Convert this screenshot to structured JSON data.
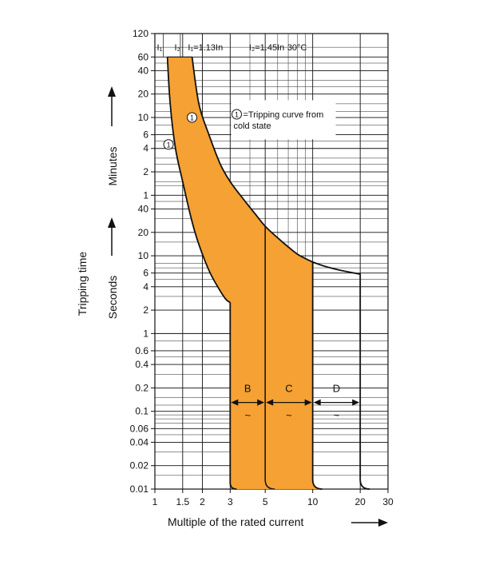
{
  "chart_data": {
    "type": "area",
    "title": "",
    "xlabel": "Multiple of the rated current",
    "ylabel": "Tripping time",
    "ylabel_minutes": "Minutes",
    "ylabel_seconds": "Seconds",
    "x_scale": "log",
    "xlim": [
      1,
      30
    ],
    "x_ticks": [
      {
        "value": 1,
        "label": "1"
      },
      {
        "value": 1.5,
        "label": "1.5"
      },
      {
        "value": 2,
        "label": "2"
      },
      {
        "value": 3,
        "label": "3"
      },
      {
        "value": 5,
        "label": "5"
      },
      {
        "value": 10,
        "label": "10"
      },
      {
        "value": 20,
        "label": "20"
      },
      {
        "value": 30,
        "label": "30"
      }
    ],
    "y_scale": "log",
    "ylim_seconds": [
      0.01,
      7200
    ],
    "y_ticks": [
      {
        "label": "120",
        "unit": "min",
        "value_s": 7200
      },
      {
        "label": "60",
        "unit": "min",
        "value_s": 3600
      },
      {
        "label": "40",
        "unit": "min",
        "value_s": 2400
      },
      {
        "label": "20",
        "unit": "min",
        "value_s": 1200
      },
      {
        "label": "10",
        "unit": "min",
        "value_s": 600
      },
      {
        "label": "6",
        "unit": "min",
        "value_s": 360
      },
      {
        "label": "4",
        "unit": "min",
        "value_s": 240
      },
      {
        "label": "2",
        "unit": "min",
        "value_s": 120
      },
      {
        "label": "1",
        "unit": "min",
        "value_s": 60
      },
      {
        "label": "40",
        "unit": "s",
        "value_s": 40
      },
      {
        "label": "20",
        "unit": "s",
        "value_s": 20
      },
      {
        "label": "10",
        "unit": "s",
        "value_s": 10
      },
      {
        "label": "6",
        "unit": "s",
        "value_s": 6
      },
      {
        "label": "4",
        "unit": "s",
        "value_s": 4
      },
      {
        "label": "2",
        "unit": "s",
        "value_s": 2
      },
      {
        "label": "1",
        "unit": "s",
        "value_s": 1
      },
      {
        "label": "0.6",
        "unit": "s",
        "value_s": 0.6
      },
      {
        "label": "0.4",
        "unit": "s",
        "value_s": 0.4
      },
      {
        "label": "0.2",
        "unit": "s",
        "value_s": 0.2
      },
      {
        "label": "0.1",
        "unit": "s",
        "value_s": 0.1
      },
      {
        "label": "0.06",
        "unit": "s",
        "value_s": 0.06
      },
      {
        "label": "0.04",
        "unit": "s",
        "value_s": 0.04
      },
      {
        "label": "0.02",
        "unit": "s",
        "value_s": 0.02
      },
      {
        "label": "0.01",
        "unit": "s",
        "value_s": 0.01
      }
    ],
    "minor_gridlines_s": [
      4800,
      3000,
      1800,
      1500,
      900,
      720,
      480,
      300,
      180,
      150,
      90,
      80,
      50,
      30,
      15,
      8,
      7,
      5,
      3,
      0.8,
      0.5,
      0.3,
      0.15,
      0.12,
      0.09,
      0.08,
      0.07,
      0.05,
      0.03,
      0.015
    ],
    "minor_x_gridlines": [
      4,
      6,
      7,
      8,
      9
    ],
    "header_labels": [
      "I₁",
      "I₂",
      "I₁=1.13In",
      "I₂=1.45In",
      "30°C"
    ],
    "grid": true,
    "legend": {
      "marker": "1",
      "text_lines": [
        "=Tripping curve from",
        "cold state"
      ]
    },
    "bands": [
      {
        "name": "B",
        "range": [
          3,
          5
        ],
        "color": "#f5a133"
      },
      {
        "name": "C",
        "range": [
          5,
          10
        ],
        "color": "#f5a133"
      },
      {
        "name": "D",
        "range": [
          10,
          20
        ],
        "color": "#ffffff"
      }
    ],
    "upper_curve": {
      "x": [
        1.72,
        1.9,
        2.2,
        2.6,
        3.0,
        3.6,
        4.3,
        5.0,
        6.0,
        7.0,
        8.0,
        9.0,
        10.0,
        12.0,
        15.0,
        20.0
      ],
      "y_s": [
        3600,
        900,
        360,
        150,
        90,
        55,
        35,
        24,
        17,
        13,
        10.5,
        9.2,
        8.3,
        7.3,
        6.5,
        5.8
      ]
    },
    "lower_curve": {
      "x": [
        1.2,
        1.25,
        1.35,
        1.5,
        1.7,
        1.9,
        2.2,
        2.5,
        2.8,
        3.0
      ],
      "y_s": [
        3600,
        900,
        240,
        90,
        30,
        14,
        6.5,
        4.0,
        2.8,
        2.5
      ]
    },
    "instantaneous_tail_right": {
      "B": 5,
      "C": 10,
      "D": 20
    },
    "cold_state_markers": [
      {
        "x": 1.22,
        "y_s": 270,
        "label": "1"
      },
      {
        "x": 1.72,
        "y_s": 600,
        "label": "1"
      }
    ],
    "tilde": "~"
  }
}
